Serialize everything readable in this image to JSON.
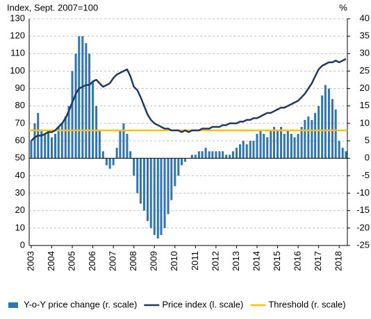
{
  "chart_data": {
    "type": "bar-line",
    "y_label": "Index, Sept. 2007=100",
    "y2_label": "%",
    "x": [
      2003,
      2003.17,
      2003.33,
      2003.5,
      2003.67,
      2003.83,
      2004,
      2004.17,
      2004.33,
      2004.5,
      2004.67,
      2004.83,
      2005,
      2005.17,
      2005.33,
      2005.5,
      2005.67,
      2005.83,
      2006,
      2006.17,
      2006.33,
      2006.5,
      2006.67,
      2006.83,
      2007,
      2007.17,
      2007.33,
      2007.5,
      2007.67,
      2007.83,
      2008,
      2008.17,
      2008.33,
      2008.5,
      2008.67,
      2008.83,
      2009,
      2009.17,
      2009.33,
      2009.5,
      2009.67,
      2009.83,
      2010,
      2010.17,
      2010.33,
      2010.5,
      2010.67,
      2010.83,
      2011,
      2011.17,
      2011.33,
      2011.5,
      2011.67,
      2011.83,
      2012,
      2012.17,
      2012.33,
      2012.5,
      2012.67,
      2012.83,
      2013,
      2013.17,
      2013.33,
      2013.5,
      2013.67,
      2013.83,
      2014,
      2014.17,
      2014.33,
      2014.5,
      2014.67,
      2014.83,
      2015,
      2015.17,
      2015.33,
      2015.5,
      2015.67,
      2015.83,
      2016,
      2016.17,
      2016.33,
      2016.5,
      2016.67,
      2016.83,
      2017,
      2017.17,
      2017.33,
      2017.5,
      2017.67,
      2017.83,
      2018,
      2018.17,
      2018.33
    ],
    "series": [
      {
        "name": "Y-o-Y price change (r. scale)",
        "color": "#2e75b6",
        "axis": "y2",
        "kind": "bar",
        "values": [
          5,
          10,
          13,
          8,
          7,
          8,
          6,
          7,
          9,
          10,
          12,
          15,
          25,
          30,
          35,
          35,
          33,
          30,
          22,
          15,
          8,
          2,
          -2,
          -3,
          -2,
          3,
          8,
          10,
          7,
          2,
          -5,
          -10,
          -13,
          -15,
          -18,
          -20,
          -22,
          -23,
          -22,
          -20,
          -16,
          -12,
          -8,
          -5,
          -2,
          -1,
          0,
          1,
          1,
          2,
          2,
          3,
          2,
          2,
          2,
          2,
          2,
          1,
          1,
          2,
          3,
          4,
          5,
          4,
          5,
          5,
          7,
          8,
          7,
          6,
          8,
          9,
          8,
          9,
          7,
          8,
          7,
          6,
          7,
          9,
          11,
          12,
          11,
          13,
          15,
          18,
          21,
          20,
          17,
          14,
          5,
          3,
          2
        ]
      },
      {
        "name": "Price index (l. scale)",
        "color": "#1f3864",
        "axis": "y",
        "kind": "line",
        "values": [
          60,
          62,
          63,
          63,
          64,
          65,
          65,
          66,
          68,
          70,
          73,
          77,
          82,
          87,
          90,
          91,
          92,
          92,
          94,
          95,
          93,
          91,
          92,
          93,
          96,
          98,
          99,
          100,
          101,
          97,
          91,
          89,
          85,
          80,
          75,
          72,
          70,
          69,
          68,
          67,
          67,
          66,
          66,
          66,
          65,
          66,
          65,
          66,
          66,
          66,
          67,
          67,
          67,
          68,
          68,
          68,
          69,
          69,
          70,
          70,
          70,
          71,
          71,
          72,
          72,
          73,
          73,
          74,
          75,
          76,
          76,
          77,
          78,
          79,
          79,
          80,
          81,
          82,
          83,
          85,
          87,
          90,
          93,
          97,
          101,
          103,
          104,
          105,
          105,
          106,
          105,
          106,
          107
        ]
      }
    ],
    "threshold": {
      "name": "Threshold (r. scale)",
      "color": "#ffc000",
      "axis": "y2",
      "value": 8
    },
    "xlim": [
      2002.9,
      2018.4
    ],
    "xticks": [
      2003,
      2004,
      2005,
      2006,
      2007,
      2008,
      2009,
      2010,
      2011,
      2012,
      2013,
      2014,
      2015,
      2016,
      2017,
      2018
    ],
    "ylim": [
      0,
      130
    ],
    "yticks": [
      0,
      10,
      20,
      30,
      40,
      50,
      60,
      70,
      80,
      90,
      100,
      110,
      120,
      130
    ],
    "y2lim": [
      -25,
      40
    ],
    "y2ticks": [
      -25,
      -20,
      -15,
      -10,
      -5,
      0,
      5,
      10,
      15,
      20,
      25,
      30,
      35,
      40
    ],
    "grid": true
  }
}
